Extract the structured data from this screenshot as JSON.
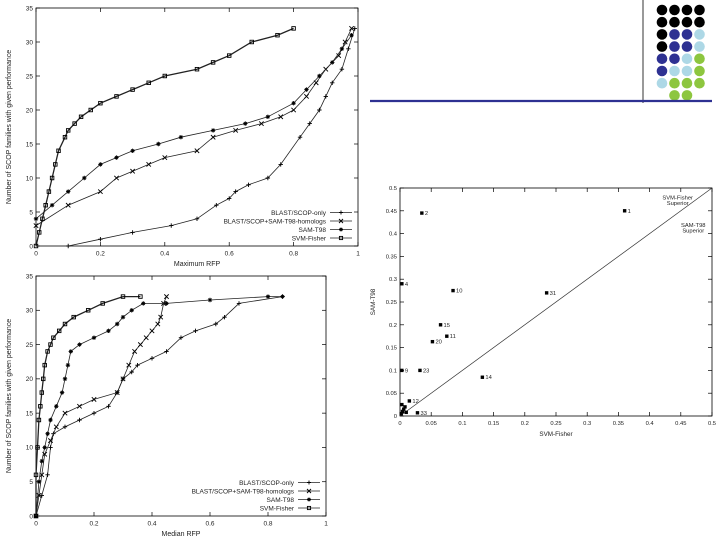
{
  "decoration": {
    "dot_grid": {
      "rows": [
        [
          "#000000",
          "#000000",
          "#000000",
          "#000000"
        ],
        [
          "#000000",
          "#000000",
          "#000000",
          "#000000"
        ],
        [
          "#000000",
          "#2e3192",
          "#2e3192",
          "#add8e6"
        ],
        [
          "#000000",
          "#2e3192",
          "#2e3192",
          "#add8e6"
        ],
        [
          "#2e3192",
          "#2e3192",
          "#add8e6",
          "#8dc63f"
        ],
        [
          "#2e3192",
          "#add8e6",
          "#add8e6",
          "#8dc63f"
        ],
        [
          "#add8e6",
          "#8dc63f",
          "#8dc63f",
          "#8dc63f"
        ],
        [
          "",
          "#8dc63f",
          "#8dc63f",
          ""
        ]
      ]
    },
    "accent_color": "#2e3192"
  },
  "chart_data": [
    {
      "type": "line",
      "xlabel": "Maximum RFP",
      "ylabel": "Number of SCOP families with given performance",
      "xlim": [
        0,
        1
      ],
      "ylim": [
        0,
        35
      ],
      "xticks": [
        0,
        0.2,
        0.4,
        0.6,
        0.8,
        1
      ],
      "yticks": [
        0,
        5,
        10,
        15,
        20,
        25,
        30,
        35
      ],
      "xtick_labels": [
        "0",
        "0.2",
        "0.4",
        "0.6",
        "0.8",
        "1"
      ],
      "ytick_labels": [
        "0",
        "5",
        "10",
        "15",
        "20",
        "25",
        "30",
        "35"
      ],
      "legend_position": "bottom-right",
      "series": [
        {
          "name": "BLAST/SCOP-only",
          "marker": "+",
          "x": [
            0.1,
            0.2,
            0.3,
            0.42,
            0.5,
            0.56,
            0.6,
            0.62,
            0.66,
            0.72,
            0.76,
            0.82,
            0.85,
            0.88,
            0.9,
            0.92,
            0.95,
            0.97,
            0.99
          ],
          "y": [
            0,
            1,
            2,
            3,
            4,
            6,
            7,
            8,
            9,
            10,
            12,
            16,
            18,
            20,
            22,
            24,
            26,
            29,
            32
          ]
        },
        {
          "name": "BLAST/SCOP+SAM-T98-homologs",
          "marker": "x",
          "x": [
            0,
            0.1,
            0.2,
            0.25,
            0.3,
            0.35,
            0.4,
            0.5,
            0.55,
            0.62,
            0.7,
            0.76,
            0.8,
            0.84,
            0.87,
            0.9,
            0.94,
            0.96,
            0.98
          ],
          "y": [
            3,
            6,
            8,
            10,
            11,
            12,
            13,
            14,
            16,
            17,
            18,
            19,
            20,
            22,
            24,
            26,
            28,
            30,
            32
          ]
        },
        {
          "name": "SAM-T98",
          "marker": "*",
          "x": [
            0,
            0.05,
            0.1,
            0.15,
            0.2,
            0.25,
            0.3,
            0.38,
            0.45,
            0.55,
            0.65,
            0.72,
            0.8,
            0.84,
            0.88,
            0.92,
            0.95,
            0.98
          ],
          "y": [
            4,
            6,
            8,
            10,
            12,
            13,
            14,
            15,
            16,
            17,
            18,
            19,
            21,
            23,
            25,
            27,
            29,
            31
          ]
        },
        {
          "name": "SVM-Fisher",
          "marker": "square",
          "x": [
            0,
            0.01,
            0.02,
            0.03,
            0.04,
            0.05,
            0.06,
            0.07,
            0.09,
            0.1,
            0.12,
            0.14,
            0.17,
            0.2,
            0.25,
            0.3,
            0.35,
            0.4,
            0.5,
            0.55,
            0.6,
            0.67,
            0.75,
            0.8
          ],
          "y": [
            0,
            2,
            4,
            6,
            8,
            10,
            12,
            14,
            16,
            17,
            18,
            19,
            20,
            21,
            22,
            23,
            24,
            25,
            26,
            27,
            28,
            30,
            31,
            32
          ]
        }
      ]
    },
    {
      "type": "line",
      "xlabel": "Median RFP",
      "ylabel": "Number of SCOP families with given performance",
      "xlim": [
        0,
        1
      ],
      "ylim": [
        0,
        35
      ],
      "xticks": [
        0,
        0.2,
        0.4,
        0.6,
        0.8,
        1
      ],
      "yticks": [
        0,
        5,
        10,
        15,
        20,
        25,
        30,
        35
      ],
      "xtick_labels": [
        "0",
        "0.2",
        "0.4",
        "0.6",
        "0.8",
        "1"
      ],
      "ytick_labels": [
        "0",
        "5",
        "10",
        "15",
        "20",
        "25",
        "30",
        "35"
      ],
      "legend_position": "bottom-right",
      "series": [
        {
          "name": "BLAST/SCOP-only",
          "marker": "+",
          "x": [
            0,
            0.02,
            0.04,
            0.05,
            0.06,
            0.1,
            0.15,
            0.2,
            0.25,
            0.28,
            0.3,
            0.33,
            0.35,
            0.4,
            0.45,
            0.5,
            0.55,
            0.62,
            0.65,
            0.7,
            0.85
          ],
          "y": [
            0,
            3,
            6,
            10,
            12,
            13,
            14,
            15,
            16,
            18,
            20,
            21,
            22,
            23,
            24,
            26,
            27,
            28,
            29,
            31,
            32
          ]
        },
        {
          "name": "BLAST/SCOP+SAM-T98-homologs",
          "marker": "x",
          "x": [
            0,
            0.01,
            0.02,
            0.03,
            0.05,
            0.07,
            0.1,
            0.15,
            0.2,
            0.28,
            0.3,
            0.32,
            0.34,
            0.36,
            0.38,
            0.4,
            0.42,
            0.43,
            0.44,
            0.45
          ],
          "y": [
            0,
            3,
            6,
            9,
            11,
            13,
            15,
            16,
            17,
            18,
            20,
            22,
            24,
            25,
            26,
            27,
            28,
            29,
            31,
            32
          ]
        },
        {
          "name": "SAM-T98",
          "marker": "*",
          "x": [
            0,
            0.01,
            0.02,
            0.03,
            0.04,
            0.05,
            0.07,
            0.09,
            0.1,
            0.11,
            0.12,
            0.15,
            0.2,
            0.25,
            0.28,
            0.3,
            0.33,
            0.37,
            0.45,
            0.6,
            0.8,
            0.85
          ],
          "y": [
            0,
            5,
            8,
            10,
            12,
            14,
            16,
            18,
            20,
            22,
            24,
            25,
            26,
            27,
            28,
            29,
            30,
            31,
            31,
            31.5,
            32,
            32
          ]
        },
        {
          "name": "SVM-Fisher",
          "marker": "square",
          "x": [
            0,
            0,
            0.005,
            0.01,
            0.015,
            0.02,
            0.025,
            0.03,
            0.04,
            0.05,
            0.06,
            0.08,
            0.1,
            0.13,
            0.18,
            0.23,
            0.3,
            0.36
          ],
          "y": [
            0,
            6,
            10,
            14,
            16,
            18,
            20,
            22,
            24,
            25,
            26,
            27,
            28,
            29,
            30,
            31,
            32,
            32
          ]
        }
      ]
    },
    {
      "type": "scatter",
      "xlabel": "SVM-Fisher",
      "ylabel": "SAM-T98",
      "xlim": [
        0,
        0.5
      ],
      "ylim": [
        0,
        0.5
      ],
      "xticks": [
        0,
        0.05,
        0.1,
        0.15,
        0.2,
        0.25,
        0.3,
        0.35,
        0.4,
        0.45,
        0.5
      ],
      "yticks": [
        0,
        0.05,
        0.1,
        0.15,
        0.2,
        0.25,
        0.3,
        0.35,
        0.4,
        0.45,
        0.5
      ],
      "xtick_labels": [
        "0",
        "0.05",
        "0.1",
        "0.15",
        "0.2",
        "0.25",
        "0.3",
        "0.35",
        "0.4",
        "0.45",
        "0.5"
      ],
      "ytick_labels": [
        "0",
        "0.05",
        "0.1",
        "0.15",
        "0.2",
        "0.25",
        "0.3",
        "0.35",
        "0.4",
        "0.45",
        "0.5"
      ],
      "diagonal": true,
      "annotations": [
        "SVM-Fisher Superior",
        "SAM-T98 Superior"
      ],
      "points": [
        {
          "label": "1",
          "x": 0.36,
          "y": 0.45
        },
        {
          "label": "2",
          "x": 0.035,
          "y": 0.445
        },
        {
          "label": "4",
          "x": 0.003,
          "y": 0.29
        },
        {
          "label": "10",
          "x": 0.085,
          "y": 0.275
        },
        {
          "label": "31",
          "x": 0.235,
          "y": 0.27
        },
        {
          "label": "15",
          "x": 0.065,
          "y": 0.2
        },
        {
          "label": "11",
          "x": 0.075,
          "y": 0.175
        },
        {
          "label": "20",
          "x": 0.052,
          "y": 0.163
        },
        {
          "label": "9",
          "x": 0.003,
          "y": 0.1
        },
        {
          "label": "23",
          "x": 0.032,
          "y": 0.1
        },
        {
          "label": "14",
          "x": 0.132,
          "y": 0.085
        },
        {
          "label": "12",
          "x": 0.015,
          "y": 0.033
        },
        {
          "label": "33",
          "x": 0.028,
          "y": 0.007
        },
        {
          "label": "",
          "x": 0.002,
          "y": 0.005
        },
        {
          "label": "",
          "x": 0.004,
          "y": 0.01
        },
        {
          "label": "",
          "x": 0.006,
          "y": 0.015
        },
        {
          "label": "",
          "x": 0.008,
          "y": 0.02
        },
        {
          "label": "",
          "x": 0.003,
          "y": 0.025
        },
        {
          "label": "",
          "x": 0.01,
          "y": 0.008
        }
      ]
    }
  ]
}
